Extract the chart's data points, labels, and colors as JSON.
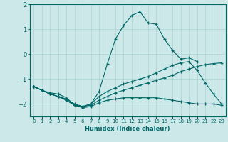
{
  "xlabel": "Humidex (Indice chaleur)",
  "bg_color": "#cce8e8",
  "line_color": "#006666",
  "grid_color": "#aad4d4",
  "xlim": [
    -0.5,
    23.5
  ],
  "ylim": [
    -2.5,
    2.0
  ],
  "yticks": [
    -2,
    -1,
    0,
    1,
    2
  ],
  "xticks": [
    0,
    1,
    2,
    3,
    4,
    5,
    6,
    7,
    8,
    9,
    10,
    11,
    12,
    13,
    14,
    15,
    16,
    17,
    18,
    19,
    20,
    21,
    22,
    23
  ],
  "lines": [
    {
      "x": [
        0,
        1,
        2,
        3,
        4,
        5,
        6,
        7,
        8,
        9,
        10,
        11,
        12,
        13,
        14,
        15,
        16,
        17,
        18,
        19,
        20
      ],
      "y": [
        -1.3,
        -1.45,
        -1.55,
        -1.6,
        -1.75,
        -2.05,
        -2.1,
        -2.0,
        -1.5,
        -0.4,
        0.6,
        1.15,
        1.55,
        1.7,
        1.25,
        1.2,
        0.6,
        0.15,
        -0.2,
        -0.15,
        -0.3
      ]
    },
    {
      "x": [
        0,
        1,
        2,
        3,
        4,
        5,
        6,
        7,
        8,
        9,
        10,
        11,
        12,
        13,
        14,
        15,
        16,
        17,
        18,
        19,
        20,
        21,
        22,
        23
      ],
      "y": [
        -1.3,
        -1.45,
        -1.6,
        -1.7,
        -1.8,
        -2.0,
        -2.1,
        -2.0,
        -1.7,
        -1.5,
        -1.35,
        -1.2,
        -1.1,
        -1.0,
        -0.9,
        -0.75,
        -0.6,
        -0.45,
        -0.35,
        -0.3,
        -0.65,
        -1.15,
        -1.6,
        -2.0
      ]
    },
    {
      "x": [
        0,
        1,
        2,
        3,
        4,
        5,
        6,
        7,
        8,
        9,
        10,
        11,
        12,
        13,
        14,
        15,
        16,
        17,
        18,
        19,
        20,
        21,
        22,
        23
      ],
      "y": [
        -1.3,
        -1.45,
        -1.6,
        -1.7,
        -1.85,
        -2.05,
        -2.1,
        -2.05,
        -1.85,
        -1.7,
        -1.55,
        -1.45,
        -1.35,
        -1.25,
        -1.15,
        -1.05,
        -0.95,
        -0.85,
        -0.7,
        -0.6,
        -0.5,
        -0.42,
        -0.38,
        -0.35
      ]
    },
    {
      "x": [
        0,
        1,
        2,
        3,
        4,
        5,
        6,
        7,
        8,
        9,
        10,
        11,
        12,
        13,
        14,
        15,
        16,
        17,
        18,
        19,
        20,
        21,
        22,
        23
      ],
      "y": [
        -1.3,
        -1.45,
        -1.6,
        -1.7,
        -1.85,
        -2.05,
        -2.15,
        -2.1,
        -1.95,
        -1.85,
        -1.8,
        -1.75,
        -1.75,
        -1.75,
        -1.75,
        -1.75,
        -1.8,
        -1.85,
        -1.9,
        -1.95,
        -2.0,
        -2.0,
        -2.0,
        -2.05
      ]
    }
  ]
}
